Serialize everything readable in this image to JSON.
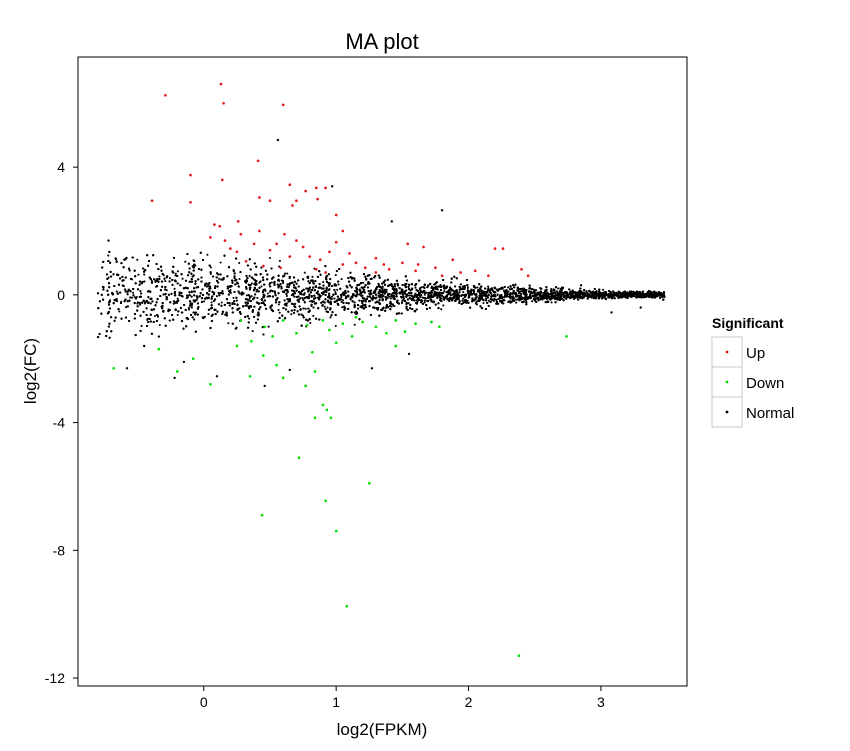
{
  "chart_data": {
    "type": "scatter",
    "title": "MA plot",
    "xlabel": "log2(FPKM)",
    "ylabel": "log2(FC)",
    "xlim": [
      -0.95,
      3.65
    ],
    "ylim": [
      -12.25,
      7.45
    ],
    "x_ticks": [
      0,
      1,
      2,
      3
    ],
    "y_ticks": [
      -12,
      -8,
      -4,
      0,
      4
    ],
    "grid": false,
    "legend_position": "right",
    "legend": {
      "title": "Significant",
      "entries": [
        {
          "key": "up",
          "label": "Up",
          "color": "#e41a1c"
        },
        {
          "key": "down",
          "label": "Down",
          "color": "#00e000"
        },
        {
          "key": "normal",
          "label": "Normal",
          "color": "#000000"
        }
      ]
    },
    "series": [
      {
        "key": "up",
        "color": "#e41a1c",
        "points": [
          [
            0.13,
            6.6
          ],
          [
            -0.29,
            6.25
          ],
          [
            0.15,
            6.0
          ],
          [
            0.6,
            5.95
          ],
          [
            0.41,
            4.2
          ],
          [
            -0.39,
            2.95
          ],
          [
            -0.1,
            3.75
          ],
          [
            0.14,
            3.6
          ],
          [
            0.65,
            3.45
          ],
          [
            0.85,
            3.35
          ],
          [
            0.92,
            3.35
          ],
          [
            0.86,
            3.0
          ],
          [
            0.5,
            2.95
          ],
          [
            0.7,
            2.95
          ],
          [
            0.77,
            3.25
          ],
          [
            0.42,
            3.05
          ],
          [
            1.0,
            2.5
          ],
          [
            -0.1,
            2.9
          ],
          [
            0.26,
            2.3
          ],
          [
            0.67,
            2.8
          ],
          [
            0.08,
            2.2
          ],
          [
            0.12,
            2.15
          ],
          [
            0.28,
            1.9
          ],
          [
            0.42,
            2.0
          ],
          [
            0.38,
            1.6
          ],
          [
            0.2,
            1.45
          ],
          [
            0.55,
            1.6
          ],
          [
            0.61,
            1.9
          ],
          [
            0.7,
            1.7
          ],
          [
            0.5,
            1.4
          ],
          [
            0.05,
            1.8
          ],
          [
            0.16,
            1.7
          ],
          [
            0.25,
            1.35
          ],
          [
            0.65,
            1.2
          ],
          [
            0.75,
            1.5
          ],
          [
            0.88,
            1.1
          ],
          [
            0.95,
            1.35
          ],
          [
            1.0,
            1.65
          ],
          [
            1.1,
            1.3
          ],
          [
            1.15,
            1.0
          ],
          [
            1.05,
            0.95
          ],
          [
            1.22,
            0.85
          ],
          [
            1.3,
            1.15
          ],
          [
            1.36,
            0.95
          ],
          [
            1.4,
            0.8
          ],
          [
            1.5,
            1.0
          ],
          [
            1.54,
            1.6
          ],
          [
            1.6,
            0.75
          ],
          [
            1.66,
            1.5
          ],
          [
            1.75,
            0.85
          ],
          [
            1.8,
            0.6
          ],
          [
            1.88,
            1.1
          ],
          [
            1.94,
            0.7
          ],
          [
            2.05,
            0.75
          ],
          [
            2.15,
            0.6
          ],
          [
            2.2,
            1.45
          ],
          [
            2.26,
            1.45
          ],
          [
            2.4,
            0.8
          ],
          [
            2.45,
            0.6
          ],
          [
            0.85,
            0.8
          ],
          [
            0.92,
            0.7
          ],
          [
            0.45,
            0.9
          ],
          [
            0.58,
            0.85
          ],
          [
            0.32,
            1.05
          ],
          [
            1.05,
            2.0
          ],
          [
            0.8,
            1.2
          ],
          [
            1.62,
            0.95
          ],
          [
            1.3,
            0.7
          ]
        ]
      },
      {
        "key": "down",
        "color": "#00e000",
        "points": [
          [
            2.38,
            -11.3
          ],
          [
            1.08,
            -9.75
          ],
          [
            1.0,
            -7.4
          ],
          [
            0.44,
            -6.9
          ],
          [
            0.92,
            -6.45
          ],
          [
            1.25,
            -5.9
          ],
          [
            0.72,
            -5.1
          ],
          [
            0.93,
            -3.6
          ],
          [
            0.96,
            -3.85
          ],
          [
            0.84,
            -3.85
          ],
          [
            0.9,
            -3.45
          ],
          [
            -0.68,
            -2.3
          ],
          [
            -0.2,
            -2.4
          ],
          [
            0.05,
            -2.8
          ],
          [
            0.35,
            -2.55
          ],
          [
            0.6,
            -2.6
          ],
          [
            0.77,
            -2.85
          ],
          [
            0.84,
            -2.4
          ],
          [
            0.55,
            -2.2
          ],
          [
            0.45,
            -1.9
          ],
          [
            0.82,
            -1.8
          ],
          [
            -0.34,
            -1.7
          ],
          [
            -0.08,
            -2.0
          ],
          [
            0.25,
            -1.6
          ],
          [
            0.36,
            -1.45
          ],
          [
            0.46,
            -1.0
          ],
          [
            0.6,
            -0.8
          ],
          [
            0.7,
            -1.2
          ],
          [
            0.78,
            -0.95
          ],
          [
            0.9,
            -0.8
          ],
          [
            0.95,
            -1.1
          ],
          [
            1.05,
            -0.9
          ],
          [
            1.12,
            -1.3
          ],
          [
            1.2,
            -0.85
          ],
          [
            1.3,
            -1.0
          ],
          [
            1.38,
            -1.2
          ],
          [
            1.45,
            -0.8
          ],
          [
            1.52,
            -1.15
          ],
          [
            1.6,
            -0.9
          ],
          [
            1.72,
            -0.85
          ],
          [
            1.78,
            -1.0
          ],
          [
            1.45,
            -1.6
          ],
          [
            2.74,
            -1.3
          ],
          [
            0.28,
            -0.8
          ],
          [
            0.52,
            -1.3
          ],
          [
            1.0,
            -1.5
          ],
          [
            1.15,
            -0.7
          ]
        ]
      }
    ],
    "normal_cloud": {
      "count": 9000,
      "x_range": [
        -0.8,
        3.48
      ],
      "y_spread_at_low_x": 2.2,
      "y_spread_at_high_x": 0.12
    },
    "normal_outliers": [
      [
        0.56,
        4.85
      ],
      [
        0.97,
        3.4
      ],
      [
        1.8,
        2.65
      ],
      [
        1.42,
        2.3
      ],
      [
        -0.72,
        1.7
      ],
      [
        -0.6,
        1.1
      ],
      [
        -0.55,
        0.5
      ],
      [
        -0.77,
        0.0
      ],
      [
        -0.7,
        -0.7
      ],
      [
        -0.58,
        -2.3
      ],
      [
        -0.45,
        -1.6
      ],
      [
        -0.15,
        -2.1
      ],
      [
        0.46,
        -2.85
      ],
      [
        1.27,
        -2.3
      ],
      [
        3.47,
        -0.15
      ],
      [
        3.42,
        0.05
      ],
      [
        3.3,
        -0.4
      ],
      [
        3.08,
        -0.55
      ],
      [
        2.95,
        0.0
      ],
      [
        0.1,
        -2.55
      ],
      [
        -0.22,
        -2.6
      ],
      [
        0.65,
        -2.35
      ],
      [
        1.55,
        -1.85
      ],
      [
        2.85,
        0.3
      ]
    ]
  }
}
